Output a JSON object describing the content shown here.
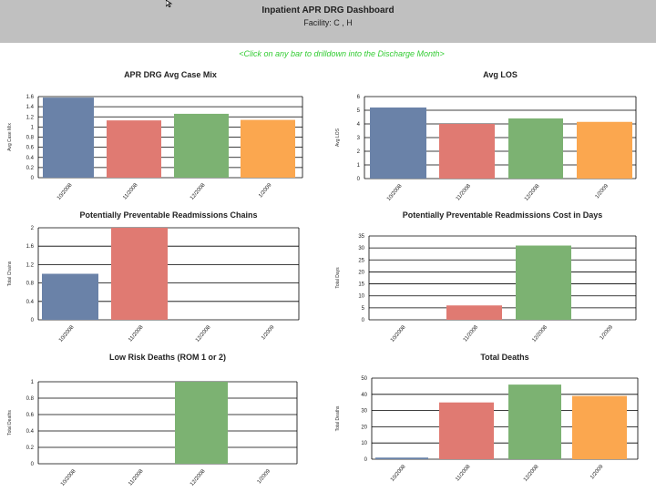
{
  "header": {
    "title": "Inpatient APR DRG Dashboard",
    "subtitle": "Facility: C , H"
  },
  "instruction": "<Click on any bar to drilldown into the Discharge Month>",
  "colors": {
    "blue": "#6a82a8",
    "red": "#e07a72",
    "green": "#7cb272",
    "orange": "#fba74f"
  },
  "chart_data": [
    {
      "type": "bar",
      "title": "APR DRG Avg Case Mix",
      "ylabel": "Avg Case Mix",
      "categories": [
        "10/2008",
        "11/2008",
        "12/2008",
        "1/2009"
      ],
      "values": [
        1.58,
        1.13,
        1.26,
        1.14
      ],
      "yticks": [
        "0",
        "0.2",
        "0.4",
        "0.6",
        "0.8",
        "1",
        "1.2",
        "1.4",
        "1.6"
      ],
      "ylim": [
        0,
        1.6
      ],
      "grid": true,
      "colors": [
        "#6a82a8",
        "#e07a72",
        "#7cb272",
        "#fba74f"
      ]
    },
    {
      "type": "bar",
      "title": "Avg LOS",
      "ylabel": "Avg LOS",
      "categories": [
        "10/2008",
        "11/2008",
        "12/2008",
        "1/2009"
      ],
      "values": [
        5.2,
        4.0,
        4.4,
        4.15
      ],
      "yticks": [
        "0",
        "1",
        "2",
        "3",
        "4",
        "5",
        "6"
      ],
      "ylim": [
        0,
        6
      ],
      "grid": true,
      "colors": [
        "#6a82a8",
        "#e07a72",
        "#7cb272",
        "#fba74f"
      ]
    },
    {
      "type": "bar",
      "title": "Potentially Preventable Readmissions Chains",
      "ylabel": "Total Chains",
      "categories": [
        "10/2008",
        "11/2008",
        "12/2008",
        "1/2009"
      ],
      "values": [
        1,
        2,
        0,
        0
      ],
      "yticks": [
        "0",
        "0.4",
        "0.8",
        "1.2",
        "1.6",
        "2"
      ],
      "ylim": [
        0,
        2
      ],
      "grid": true,
      "colors": [
        "#6a82a8",
        "#e07a72",
        "#7cb272",
        "#fba74f"
      ]
    },
    {
      "type": "bar",
      "title": "Potentially Preventable Readmissions Cost in Days",
      "ylabel": "Total Days",
      "categories": [
        "10/2008",
        "11/2008",
        "12/2008",
        "1/2009"
      ],
      "values": [
        0,
        6,
        31,
        0
      ],
      "yticks": [
        "0",
        "5",
        "10",
        "15",
        "20",
        "25",
        "30",
        "35"
      ],
      "ylim": [
        0,
        35
      ],
      "grid": true,
      "colors": [
        "#6a82a8",
        "#e07a72",
        "#7cb272",
        "#fba74f"
      ]
    },
    {
      "type": "bar",
      "title": "Low Risk Deaths (ROM 1 or 2)",
      "ylabel": "Total Deaths",
      "categories": [
        "10/2008",
        "11/2008",
        "12/2008",
        "1/2009"
      ],
      "values": [
        0,
        0,
        1,
        0
      ],
      "yticks": [
        "0",
        "0.2",
        "0.4",
        "0.6",
        "0.8",
        "1"
      ],
      "ylim": [
        0,
        1
      ],
      "grid": true,
      "colors": [
        "#6a82a8",
        "#e07a72",
        "#7cb272",
        "#fba74f"
      ]
    },
    {
      "type": "bar",
      "title": "Total Deaths",
      "ylabel": "Total Deaths",
      "categories": [
        "10/2008",
        "11/2008",
        "12/2008",
        "1/2009"
      ],
      "values": [
        1,
        35,
        46,
        39
      ],
      "yticks": [
        "0",
        "10",
        "20",
        "30",
        "40",
        "50"
      ],
      "ylim": [
        0,
        50
      ],
      "grid": true,
      "colors": [
        "#6a82a8",
        "#e07a72",
        "#7cb272",
        "#fba74f"
      ]
    }
  ]
}
